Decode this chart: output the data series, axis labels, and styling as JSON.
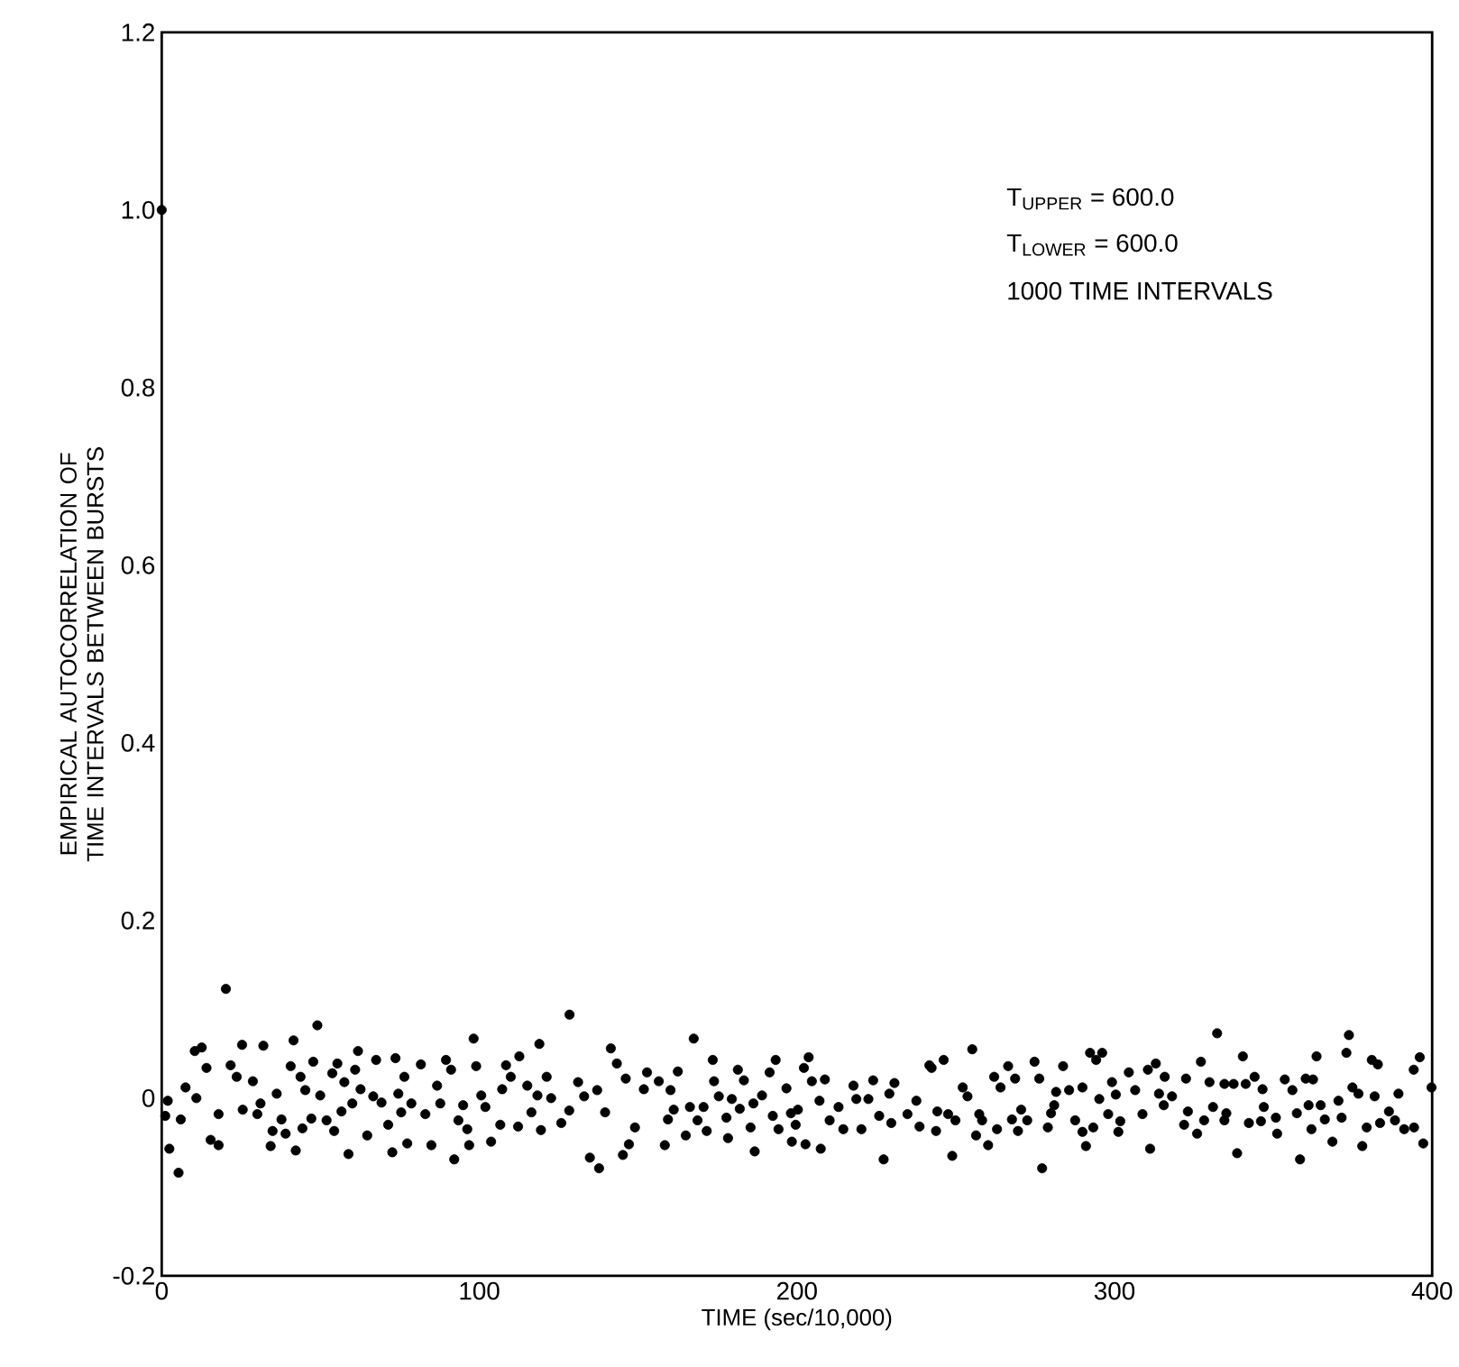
{
  "chart_data": {
    "type": "scatter",
    "xlabel": "TIME (sec/10,000)",
    "ylabel": "EMPIRICAL AUTOCORRELATION OF TIME INTERVALS BETWEEN BURSTS",
    "annotations": [
      "T$_{UPPER}$ = 600.0",
      "T$_{LOWER}$ = 600.0",
      "1000 TIME INTERVALS"
    ],
    "xlim": [
      0,
      400
    ],
    "ylim": [
      -0.2,
      1.2
    ],
    "xticks": [
      0,
      100,
      200,
      300,
      400
    ],
    "yticks": [
      -0.2,
      0,
      0.2,
      0.4,
      0.6,
      0.8,
      {
        "value": 1,
        "label": "1.0"
      },
      1.2
    ],
    "marker": "circle",
    "grid": false,
    "series": [
      {
        "color": "#000000",
        "x": [
          0,
          20.2,
          49,
          10.4,
          12.6,
          25.3,
          32,
          41.5,
          2.4,
          5.3,
          15.4,
          17.9,
          34.3,
          42.2,
          58.8,
          72.6,
          77.3,
          1.1,
          1.9,
          7.5,
          10.9,
          6,
          14.1,
          21.7,
          23.6,
          28.7,
          25.5,
          17.9,
          30.1,
          31.1,
          36.2,
          34.9,
          39,
          37.7,
          40.6,
          43.7,
          45.2,
          49.9,
          47.7,
          44.3,
          47.1,
          51.9,
          54.3,
          55.3,
          53.7,
          57.5,
          56.6,
          60,
          61.8,
          60.9,
          62.6,
          64.7,
          67.5,
          66.6,
          69.2,
          71.3,
          73.6,
          74.5,
          76.4,
          75.4,
          128.4,
          98.2,
          118.9,
          81.6,
          89.5,
          91.1,
          99,
          108.4,
          112.6,
          109.9,
          141.4,
          143.3,
          152.8,
          146.1,
          121.2,
          131.1,
          86.7,
          78.6,
          83,
          87.7,
          94.9,
          93.4,
          96.2,
          100.6,
          101.9,
          106.6,
          107.2,
          112.2,
          115.1,
          116.4,
          118.3,
          122.6,
          119.4,
          125.8,
          128.3,
          133,
          137.1,
          139.6,
          84.9,
          92.1,
          96.8,
          103.7,
          134.8,
          137.7,
          145.2,
          147.1,
          149,
          151.8,
          158.4,
          159.4,
          156.5,
          167.5,
          162.5,
          173.5,
          181.4,
          183.3,
          193.3,
          191.4,
          203.7,
          202.2,
          204.7,
          208.8,
          241.7,
          173.9,
          160.2,
          161.2,
          166.3,
          170.6,
          168.7,
          175.4,
          177.8,
          179.5,
          182,
          186.3,
          189,
          196.7,
          192.4,
          198.1,
          200.3,
          185.4,
          194.2,
          199.6,
          165,
          171.6,
          178.3,
          186.7,
          198.4,
          202.7,
          207.5,
          207.1,
          210.3,
          213.1,
          214.6,
          217.8,
          218.7,
          224,
          222.5,
          220.3,
          225.9,
          227.3,
          230.7,
          229.1,
          234.8,
          237.6,
          238.6,
          229.7,
          255.2,
          246.2,
          242.4,
          266.5,
          262.1,
          268.7,
          274.8,
          276.3,
          283.8,
          292.3,
          296.1,
          294.2,
          299.2,
          304.5,
          313,
          310.5,
          315.8,
          322.5,
          252.2,
          253.7,
          264.1,
          281.6,
          285.7,
          289.9,
          295.2,
          300.4,
          306.5,
          314,
          318.1,
          244.2,
          247.6,
          249.9,
          243.8,
          257.4,
          258.3,
          263,
          256.4,
          260.2,
          248.9,
          267.7,
          270.6,
          272.5,
          269.6,
          279,
          280,
          281,
          277.2,
          287.6,
          289.9,
          291,
          293.3,
          298,
          301.8,
          301.2,
          308.8,
          311.2,
          315.5,
          323.1,
          321.9,
          332.3,
          373.8,
          327.2,
          340.4,
          363.6,
          373,
          381,
          382.9,
          396.1,
          394.2,
          329.9,
          334.6,
          337.5,
          341.3,
          344.1,
          346.6,
          353.6,
          356,
          360.2,
          362.5,
          374.9,
          376.8,
          381.9,
          389.4,
          399.8,
          331,
          335.2,
          328.2,
          326,
          334.6,
          342.3,
          347,
          346.1,
          350.8,
          351.2,
          357.4,
          361.1,
          364.9,
          366.2,
          371.5,
          362,
          368.6,
          370.5,
          379.4,
          383.6,
          386.4,
          388.3,
          391.2,
          394.3,
          378,
          338.6,
          358.4,
          397.2
        ],
        "values": [
          1,
          0.123,
          0.082,
          0.053,
          0.057,
          0.06,
          0.059,
          0.065,
          -0.057,
          -0.084,
          -0.047,
          -0.053,
          -0.054,
          -0.059,
          -0.063,
          -0.061,
          -0.051,
          -0.02,
          -0.003,
          0.012,
          0,
          -0.024,
          0.034,
          0.037,
          0.024,
          0.019,
          -0.013,
          -0.018,
          -0.018,
          -0.006,
          0.005,
          -0.037,
          -0.04,
          -0.024,
          0.036,
          0.024,
          0.009,
          0.003,
          0.041,
          -0.034,
          -0.023,
          -0.025,
          -0.037,
          0.039,
          0.028,
          0.018,
          -0.015,
          -0.006,
          0.053,
          0.032,
          0.01,
          -0.042,
          0.043,
          0.002,
          -0.005,
          -0.03,
          0.045,
          0.005,
          0.024,
          -0.016,
          0.094,
          0.067,
          0.061,
          0.038,
          0.043,
          0.032,
          0.036,
          0.037,
          0.047,
          0.024,
          0.056,
          0.039,
          0.029,
          0.022,
          0.024,
          0.018,
          0.014,
          -0.006,
          -0.018,
          -0.006,
          -0.008,
          -0.025,
          -0.035,
          0.003,
          -0.01,
          -0.03,
          0.01,
          -0.032,
          0.014,
          -0.016,
          0.003,
          0,
          -0.036,
          -0.028,
          -0.014,
          0.002,
          0.009,
          -0.016,
          -0.053,
          -0.069,
          -0.053,
          -0.049,
          -0.067,
          -0.079,
          -0.064,
          -0.052,
          -0.033,
          0.01,
          -0.053,
          -0.024,
          0.019,
          0.067,
          0.03,
          0.043,
          0.032,
          0.02,
          0.043,
          0.029,
          0.046,
          0.034,
          0.019,
          0.021,
          0.037,
          0.019,
          0.009,
          -0.013,
          -0.01,
          -0.01,
          -0.025,
          0.002,
          -0.022,
          -0.001,
          -0.012,
          -0.006,
          0.003,
          0.011,
          -0.02,
          -0.017,
          -0.013,
          -0.033,
          -0.035,
          -0.03,
          -0.042,
          -0.037,
          -0.045,
          -0.06,
          -0.049,
          -0.052,
          -0.057,
          -0.003,
          -0.025,
          -0.01,
          -0.035,
          0.014,
          -0.001,
          0.02,
          -0.001,
          -0.035,
          -0.02,
          -0.069,
          0.017,
          0.005,
          -0.018,
          -0.003,
          -0.032,
          -0.028,
          0.055,
          0.043,
          0.034,
          0.036,
          0.024,
          0.022,
          0.041,
          0.022,
          0.036,
          0.051,
          0.051,
          0.043,
          0.018,
          0.029,
          0.039,
          0.032,
          0.024,
          0.022,
          0.012,
          0.002,
          0.012,
          0.007,
          0.009,
          0.012,
          -0.001,
          0.004,
          0.009,
          0.005,
          0.002,
          -0.015,
          -0.018,
          -0.025,
          -0.037,
          -0.018,
          -0.025,
          -0.035,
          -0.042,
          -0.053,
          -0.065,
          -0.024,
          -0.013,
          -0.025,
          -0.037,
          -0.033,
          -0.017,
          -0.008,
          -0.079,
          -0.025,
          -0.038,
          -0.054,
          -0.033,
          -0.018,
          -0.026,
          -0.038,
          -0.018,
          -0.057,
          -0.008,
          -0.015,
          -0.03,
          0.073,
          0.071,
          0.041,
          0.047,
          0.047,
          0.051,
          0.043,
          0.038,
          0.046,
          0.032,
          0.018,
          0.016,
          0.016,
          0.016,
          0.024,
          0.01,
          0.021,
          0.009,
          0.022,
          0.021,
          0.012,
          0.005,
          0.002,
          0.005,
          0.012,
          -0.01,
          -0.017,
          -0.025,
          -0.04,
          -0.025,
          -0.028,
          -0.01,
          -0.026,
          -0.022,
          -0.04,
          -0.017,
          -0.008,
          -0.008,
          -0.024,
          -0.022,
          -0.035,
          -0.049,
          -0.003,
          -0.033,
          -0.028,
          -0.015,
          -0.025,
          -0.035,
          -0.033,
          -0.054,
          -0.062,
          -0.069,
          -0.051
        ]
      }
    ]
  }
}
